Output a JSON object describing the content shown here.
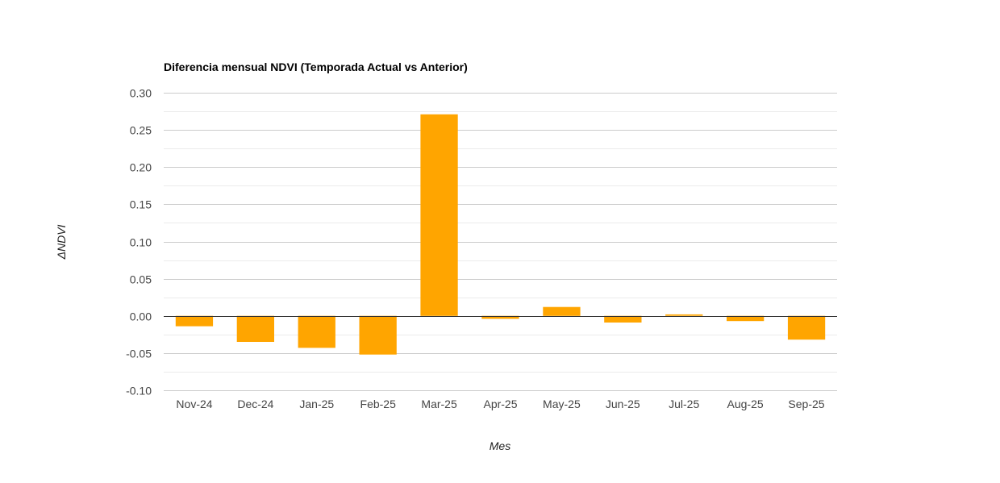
{
  "chart_data": {
    "type": "bar",
    "title": "Diferencia mensual NDVI (Temporada Actual vs Anterior)",
    "xlabel": "Mes",
    "ylabel": "ΔNDVI",
    "categories": [
      "Nov-24",
      "Dec-24",
      "Jan-25",
      "Feb-25",
      "Mar-25",
      "Apr-25",
      "May-25",
      "Jun-25",
      "Jul-25",
      "Aug-25",
      "Sep-25"
    ],
    "values": [
      -0.014,
      -0.035,
      -0.043,
      -0.052,
      0.271,
      -0.004,
      0.012,
      -0.009,
      0.002,
      -0.007,
      -0.032
    ],
    "ylim": [
      -0.1,
      0.3
    ],
    "yticks": [
      0.3,
      0.25,
      0.2,
      0.15,
      0.1,
      0.05,
      0.0,
      -0.05,
      -0.1
    ],
    "ytick_labels": [
      "0.30",
      "0.25",
      "0.20",
      "0.15",
      "0.10",
      "0.05",
      "0.00",
      "-0.05",
      "-0.10"
    ],
    "bar_color": "#FFA500",
    "grid": true,
    "legend": "none"
  }
}
